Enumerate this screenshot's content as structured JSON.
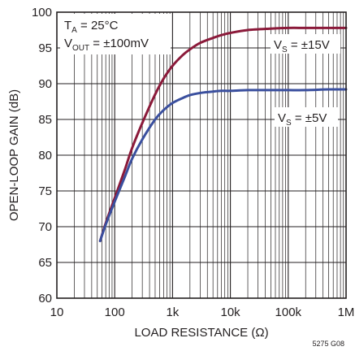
{
  "chart_data": {
    "type": "line",
    "xlabel": "LOAD RESISTANCE (Ω)",
    "ylabel": "OPEN-LOOP GAIN (dB)",
    "xscale": "log",
    "xlim": [
      10,
      1000000
    ],
    "ylim": [
      60,
      100
    ],
    "grid": true,
    "x_tick_labels": [
      "10",
      "100",
      "1k",
      "10k",
      "100k",
      "1M"
    ],
    "y_tick_labels": [
      "60",
      "65",
      "70",
      "75",
      "80",
      "85",
      "90",
      "95",
      "100"
    ],
    "conditions": {
      "ta": {
        "main": "T",
        "sub": "A",
        "rest": " = 25°C"
      },
      "vout": {
        "main": "V",
        "sub": "OUT",
        "rest": " = ±100mV"
      }
    },
    "series": [
      {
        "name": "VS = ±15V",
        "label": {
          "main": "V",
          "sub": "S",
          "rest": " = ±15V"
        },
        "color": "#8b1a3a",
        "x": [
          56,
          70,
          100,
          150,
          200,
          300,
          500,
          700,
          1000,
          1500,
          2000,
          3000,
          5000,
          7000,
          10000,
          20000,
          50000,
          100000,
          200000,
          500000,
          1000000
        ],
        "y": [
          68,
          70.5,
          74,
          78,
          81,
          84.5,
          88.5,
          90.7,
          92.5,
          94,
          94.8,
          95.7,
          96.4,
          96.8,
          97.1,
          97.5,
          97.7,
          97.8,
          97.8,
          97.8,
          97.8
        ]
      },
      {
        "name": "VS = ±5V",
        "label": {
          "main": "V",
          "sub": "S",
          "rest": " = ±5V"
        },
        "color": "#3a4f9e",
        "x": [
          56,
          70,
          100,
          150,
          200,
          300,
          500,
          700,
          1000,
          1500,
          2000,
          3000,
          5000,
          7000,
          10000,
          20000,
          50000,
          100000,
          200000,
          500000,
          1000000
        ],
        "y": [
          68,
          70.3,
          73.5,
          77,
          79.5,
          82.2,
          85,
          86.3,
          87.3,
          88,
          88.4,
          88.7,
          88.9,
          89,
          89,
          89.1,
          89.1,
          89.1,
          89.1,
          89.2,
          89.2
        ]
      }
    ]
  },
  "figure_code": "5275 G08"
}
